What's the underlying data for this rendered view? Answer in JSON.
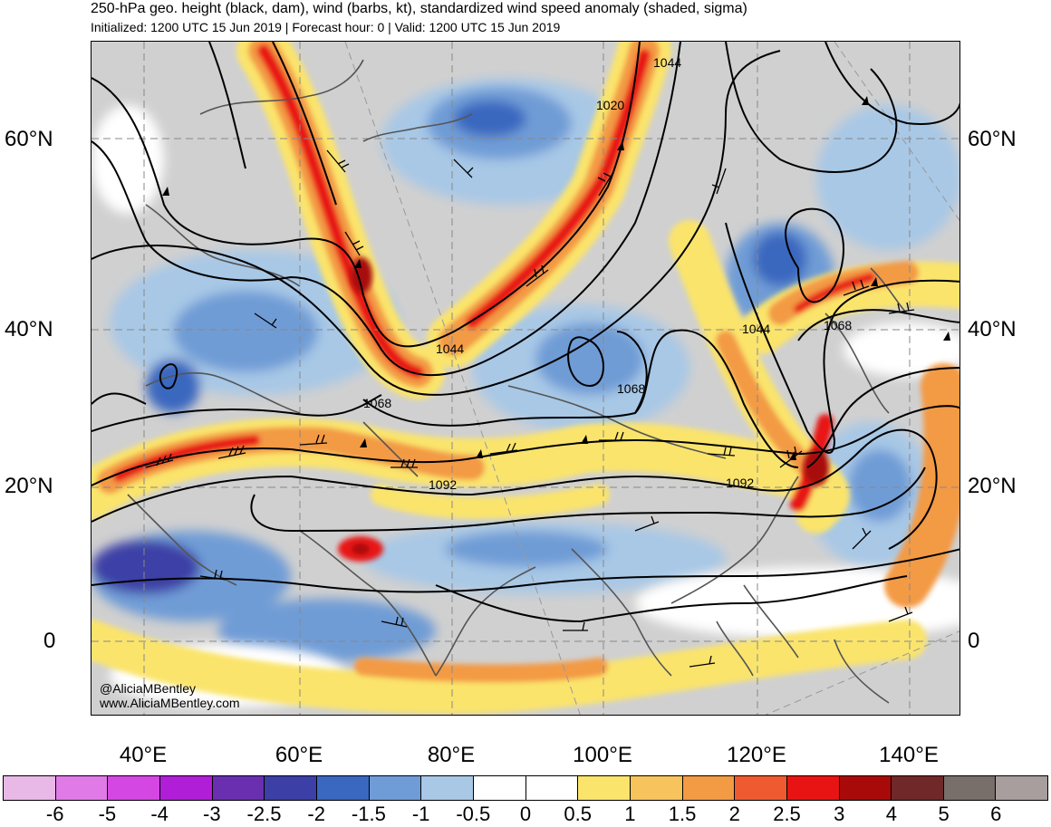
{
  "header": {
    "title": "250-hPa geo. height (black, dam), wind (barbs, kt), standardized wind speed anomaly (shaded, sigma)",
    "subtitle": "Initialized: 1200 UTC 15 Jun 2019 | Forecast hour: 0 | Valid: 1200 UTC 15 Jun 2019"
  },
  "axes": {
    "lat_left": [
      "60°N",
      "40°N",
      "20°N",
      "0"
    ],
    "lat_right": [
      "60°N",
      "40°N",
      "20°N",
      "0"
    ],
    "lon": [
      "40°E",
      "60°E",
      "80°E",
      "100°E",
      "120°E",
      "140°E"
    ]
  },
  "contours": [
    "1044",
    "1020",
    "1044",
    "1068",
    "1044",
    "1068",
    "1068",
    "1092",
    "1092"
  ],
  "credits": {
    "handle": "@AliciaMBentley",
    "website": "www.AliciaMBentley.com"
  },
  "colorbar": {
    "colors": [
      "#e8b8e6",
      "#e07ae6",
      "#d447e3",
      "#b01ed8",
      "#6a2fb0",
      "#3c3fa6",
      "#3a67bf",
      "#6f9cd6",
      "#a8c8e6",
      "#ffffff",
      "#ffffff",
      "#fae46c",
      "#f6c35c",
      "#f39a44",
      "#f05a30",
      "#e81414",
      "#a80a0a",
      "#702828",
      "#786e6a",
      "#a89e9e"
    ],
    "ticks": [
      "-6",
      "-5",
      "-4",
      "-3",
      "-2.5",
      "-2",
      "-1.5",
      "-1",
      "-0.5",
      "0",
      "0.5",
      "1",
      "1.5",
      "2",
      "2.5",
      "3",
      "4",
      "5",
      "6"
    ]
  },
  "colors": {
    "jet_strong": "#e81414",
    "jet_moderate": "#f39a44",
    "jet_weak": "#fae46c",
    "slow_weak": "#a8c8e6",
    "slow_moderate": "#6f9cd6",
    "slow_strong": "#3a67bf",
    "neutral": "#d0d0d0"
  }
}
